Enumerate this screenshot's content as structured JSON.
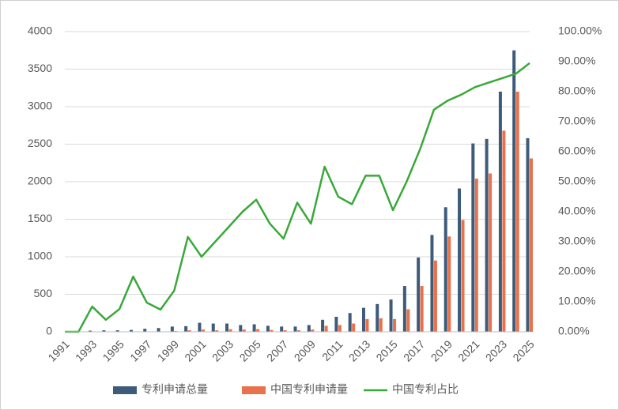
{
  "chart_data": {
    "type": "bar",
    "categories": [
      "1991",
      null,
      "1993",
      null,
      "1995",
      null,
      "1997",
      null,
      "1999",
      null,
      "2001",
      null,
      "2003",
      null,
      "2005",
      null,
      "2007",
      null,
      "2009",
      null,
      "2011",
      null,
      "2013",
      null,
      "2015",
      null,
      "2017",
      null,
      "2019",
      null,
      "2021",
      null,
      "2023",
      null,
      "2025"
    ],
    "series": [
      {
        "name": "专利申请总量",
        "color": "#3e5b7a",
        "values": [
          0,
          5,
          15,
          20,
          20,
          25,
          40,
          50,
          70,
          75,
          120,
          110,
          110,
          90,
          100,
          80,
          70,
          70,
          90,
          160,
          200,
          250,
          320,
          370,
          430,
          610,
          990,
          1290,
          1660,
          1910,
          2510,
          2570,
          3200,
          3750,
          2580
        ]
      },
      {
        "name": "中国专利申请量",
        "color": "#e9714b",
        "values": [
          0,
          0,
          1,
          1,
          2,
          5,
          5,
          5,
          10,
          20,
          30,
          20,
          35,
          30,
          35,
          25,
          20,
          20,
          30,
          80,
          90,
          110,
          170,
          180,
          170,
          300,
          610,
          950,
          1270,
          1490,
          2040,
          2110,
          2680,
          3200,
          2310
        ]
      },
      {
        "name": "中国专利占比",
        "color": "#3aa83a",
        "type": "line",
        "axis": "y2",
        "values": [
          0,
          0,
          8.4,
          4,
          7.6,
          18.4,
          9.7,
          7.4,
          13.7,
          31.6,
          25,
          30,
          35,
          40,
          44,
          36,
          31,
          43,
          36,
          55,
          45,
          42.5,
          52,
          52,
          40.5,
          50,
          61,
          74,
          77,
          79,
          81.5,
          83,
          84.5,
          86,
          89.5
        ]
      }
    ],
    "ylim": [
      0,
      4000
    ],
    "yticks": [
      0,
      500,
      1000,
      1500,
      2000,
      2500,
      3000,
      3500,
      4000
    ],
    "y2lim": [
      0,
      100
    ],
    "y2ticks": [
      {
        "value": 0,
        "label": "0.00%"
      },
      {
        "value": 10,
        "label": "10.00%"
      },
      {
        "value": 20,
        "label": "20.00%"
      },
      {
        "value": 30,
        "label": "30.00%"
      },
      {
        "value": 40,
        "label": "40.00%"
      },
      {
        "value": 50,
        "label": "50.00%"
      },
      {
        "value": 60,
        "label": "60.00%"
      },
      {
        "value": 70,
        "label": "70.00%"
      },
      {
        "value": 80,
        "label": "80.00%"
      },
      {
        "value": 90,
        "label": "90.00%"
      },
      {
        "value": 100,
        "label": "100.00%"
      }
    ],
    "legend": "bottom"
  }
}
